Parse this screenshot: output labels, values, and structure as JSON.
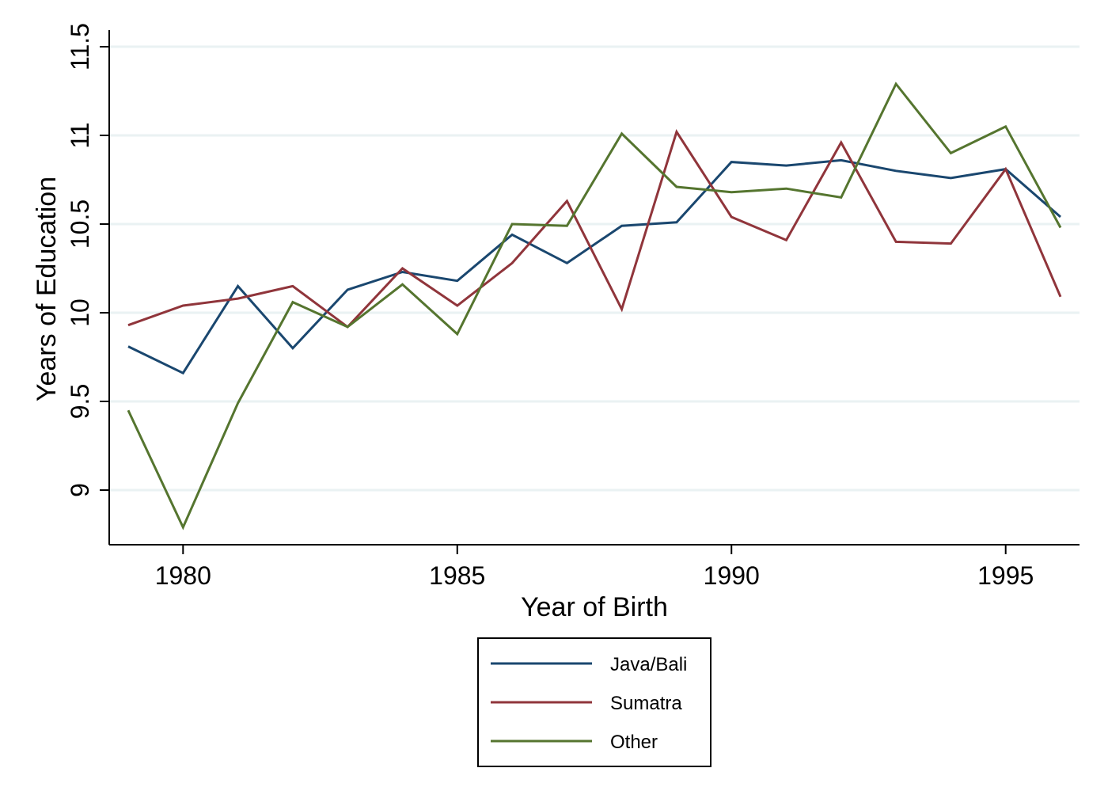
{
  "chart_data": {
    "type": "line",
    "xlabel": "Year of Birth",
    "ylabel": "Years of Education",
    "xlim": [
      1979,
      1996
    ],
    "ylim": [
      8.8,
      11.5
    ],
    "x_ticks": [
      1980,
      1985,
      1990,
      1995
    ],
    "y_ticks": [
      9,
      9.5,
      10,
      10.5,
      11,
      11.5
    ],
    "y_tick_labels": [
      "9",
      "9.5",
      "10",
      "10.5",
      "11",
      "11.5"
    ],
    "grid": "horizontal",
    "legend_position": "bottom",
    "x": [
      1979,
      1980,
      1981,
      1982,
      1983,
      1984,
      1985,
      1986,
      1987,
      1988,
      1989,
      1990,
      1991,
      1992,
      1993,
      1994,
      1995,
      1996
    ],
    "series": [
      {
        "name": "Java/Bali",
        "color": "#1a476f",
        "values": [
          9.81,
          9.66,
          10.15,
          9.8,
          10.13,
          10.23,
          10.18,
          10.44,
          10.28,
          10.49,
          10.51,
          10.85,
          10.83,
          10.86,
          10.8,
          10.76,
          10.81,
          10.54
        ]
      },
      {
        "name": "Sumatra",
        "color": "#90353b",
        "values": [
          9.93,
          10.04,
          10.08,
          10.15,
          9.92,
          10.25,
          10.04,
          10.28,
          10.63,
          10.02,
          11.02,
          10.54,
          10.41,
          10.96,
          10.4,
          10.39,
          10.81,
          10.09
        ]
      },
      {
        "name": "Other",
        "color": "#55752f",
        "values": [
          9.45,
          8.79,
          9.49,
          10.06,
          9.92,
          10.16,
          9.88,
          10.5,
          10.49,
          11.01,
          10.71,
          10.68,
          10.7,
          10.65,
          11.29,
          10.9,
          11.05,
          10.48
        ]
      }
    ]
  },
  "colors": {
    "grid": "#eaf2f3",
    "axis": "#000000",
    "background": "#ffffff"
  }
}
